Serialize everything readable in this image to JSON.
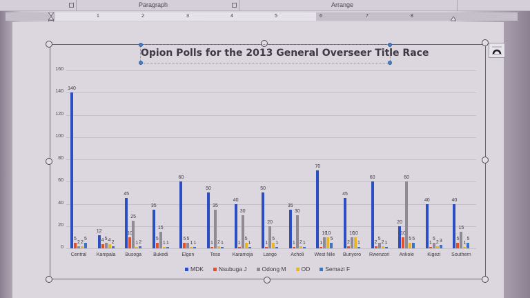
{
  "ribbon": {
    "groups": [
      "Paragraph",
      "Arrange"
    ]
  },
  "ruler": {
    "numbers": [
      "1",
      "2",
      "3",
      "4",
      "5",
      "6",
      "7",
      "8"
    ]
  },
  "chart_data": {
    "type": "bar",
    "title": "Opion Polls for the 2013 General Overseer Title Race",
    "xlabel": "",
    "ylabel": "",
    "ylim": [
      0,
      160
    ],
    "yticks": [
      0,
      20,
      40,
      60,
      80,
      100,
      120,
      140,
      160
    ],
    "grid": true,
    "legend_position": "bottom",
    "categories": [
      "Central",
      "Kampala",
      "Busoga",
      "Bukedi",
      "Elgon",
      "Teso",
      "Karamoja",
      "Lango",
      "Acholi",
      "West Nile",
      "Bunyoro",
      "Rwenzori",
      "Ankole",
      "Kigezi",
      "Southern"
    ],
    "series": [
      {
        "name": "MDK",
        "color": "#2b4fc0",
        "values": [
          140,
          12,
          45,
          35,
          60,
          50,
          40,
          50,
          35,
          70,
          45,
          60,
          20,
          40,
          40
        ]
      },
      {
        "name": "Nsubuga J",
        "color": "#e0522e",
        "values": [
          5,
          4,
          10,
          5,
          5,
          1,
          1,
          1,
          1,
          1,
          2,
          2,
          10,
          1,
          5
        ]
      },
      {
        "name": "Odong M",
        "color": "#8f8b94",
        "values": [
          2,
          5,
          25,
          15,
          5,
          35,
          30,
          20,
          30,
          10,
          10,
          5,
          60,
          5,
          15
        ]
      },
      {
        "name": "OD",
        "color": "#e8b52a",
        "values": [
          2,
          4,
          1,
          1,
          1,
          2,
          5,
          5,
          2,
          10,
          10,
          2,
          5,
          2,
          1
        ]
      },
      {
        "name": "Semazi F",
        "color": "#3c74c4",
        "values": [
          5,
          2,
          2,
          1,
          1,
          1,
          1,
          1,
          1,
          5,
          1,
          1,
          5,
          3,
          5
        ]
      }
    ]
  }
}
